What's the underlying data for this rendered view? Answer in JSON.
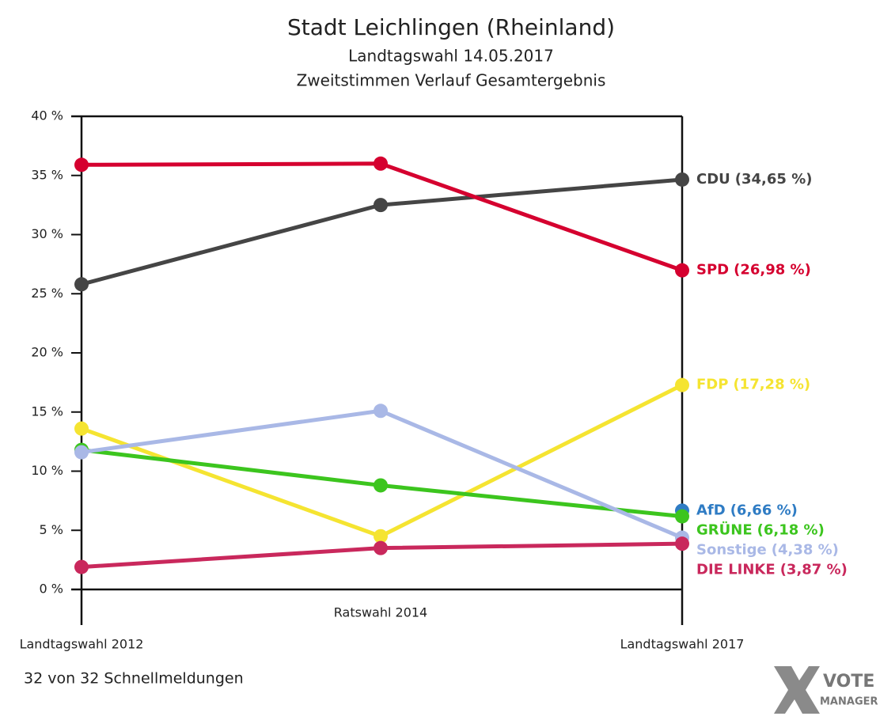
{
  "chart_data": {
    "type": "line",
    "title": "Stadt Leichlingen (Rheinland)",
    "subtitle": [
      "Landtagswahl 14.05.2017",
      "Zweitstimmen Verlauf Gesamtergebnis"
    ],
    "categories": [
      "Landtagswahl 2012",
      "Ratswahl 2014",
      "Landtagswahl 2017"
    ],
    "series": [
      {
        "name": "CDU",
        "color": "#454545",
        "values": [
          25.8,
          32.5,
          34.65
        ],
        "value_labels": [
          null,
          null,
          "(34,65 %)"
        ]
      },
      {
        "name": "SPD",
        "color": "#d5002f",
        "values": [
          35.9,
          36.0,
          26.98
        ],
        "value_labels": [
          null,
          null,
          "(26,98 %)"
        ]
      },
      {
        "name": "FDP",
        "color": "#f5e431",
        "values": [
          13.6,
          4.5,
          17.28
        ],
        "value_labels": [
          null,
          null,
          "(17,28 %)"
        ]
      },
      {
        "name": "AfD",
        "color": "#2f7cc4",
        "values": [
          null,
          null,
          6.66
        ],
        "value_labels": [
          null,
          null,
          "(6,66 %)"
        ]
      },
      {
        "name": "GRÜNE",
        "color": "#3cc51e",
        "values": [
          11.8,
          8.8,
          6.18
        ],
        "value_labels": [
          null,
          null,
          "(6,18 %)"
        ]
      },
      {
        "name": "Sonstige",
        "color": "#a9b8e6",
        "values": [
          11.6,
          15.1,
          4.38
        ],
        "value_labels": [
          null,
          null,
          "(4,38 %)"
        ]
      },
      {
        "name": "DIE LINKE",
        "color": "#c9285c",
        "values": [
          1.9,
          3.5,
          3.87
        ],
        "value_labels": [
          null,
          null,
          "(3,87 %)"
        ]
      }
    ],
    "ylim": [
      0,
      40
    ],
    "yticks": [
      {
        "value": 0,
        "label": "0 %"
      },
      {
        "value": 5,
        "label": "5 %"
      },
      {
        "value": 10,
        "label": "10 %"
      },
      {
        "value": 15,
        "label": "15 %"
      },
      {
        "value": 20,
        "label": "20 %"
      },
      {
        "value": 25,
        "label": "25 %"
      },
      {
        "value": 30,
        "label": "30 %"
      },
      {
        "value": 35,
        "label": "35 %"
      },
      {
        "value": 40,
        "label": "40 %"
      }
    ],
    "note": "32 von 32 Schnellmeldungen",
    "logo": [
      "VOTE",
      "MANAGER"
    ]
  }
}
